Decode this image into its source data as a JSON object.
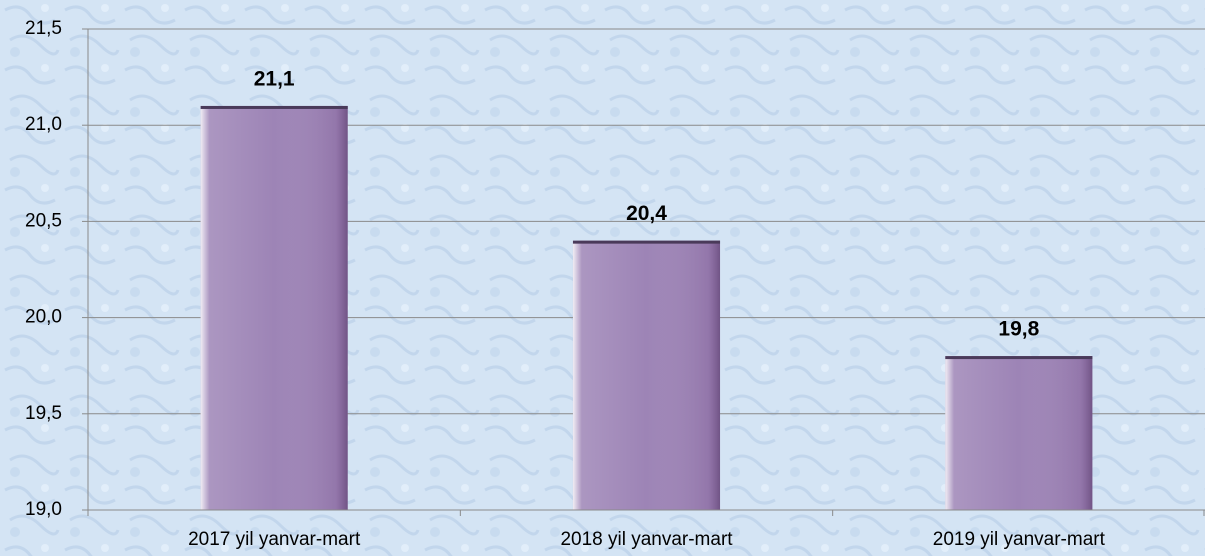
{
  "chart_data": {
    "type": "bar",
    "categories": [
      "2017 yil yanvar-mart",
      "2018 yil yanvar-mart",
      "2019 yil yanvar-mart"
    ],
    "values": [
      21.1,
      20.4,
      19.8
    ],
    "value_labels": [
      "21,1",
      "20,4",
      "19,8"
    ],
    "color": "#9d84b6",
    "ylim": [
      19.0,
      21.5
    ],
    "yticks": [
      {
        "value": 19.0,
        "label": "19,0"
      },
      {
        "value": 19.5,
        "label": "19,5"
      },
      {
        "value": 20.0,
        "label": "20,0"
      },
      {
        "value": 20.5,
        "label": "20,5"
      },
      {
        "value": 21.0,
        "label": "21,0"
      },
      {
        "value": 21.5,
        "label": "21,5"
      }
    ],
    "grid": true
  }
}
